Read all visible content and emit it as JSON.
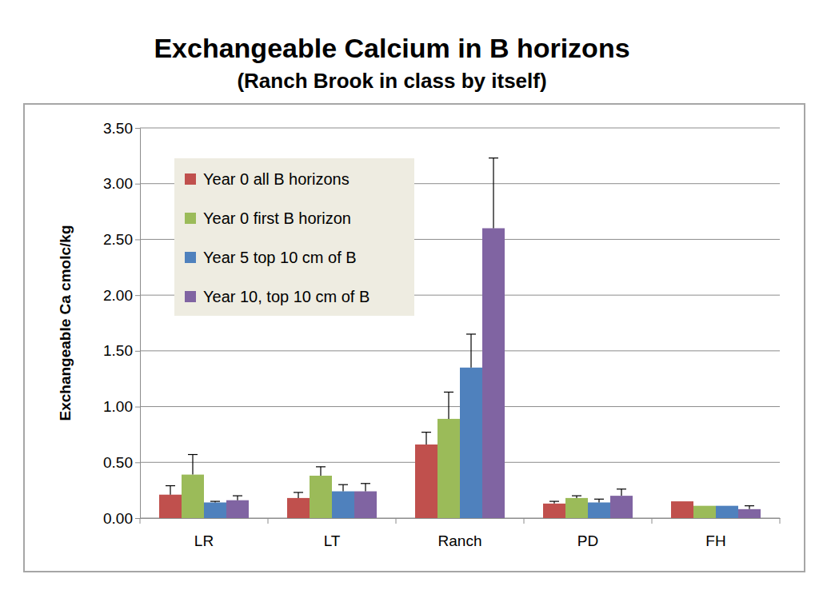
{
  "chart_data": {
    "type": "bar",
    "title": "Exchangeable Calcium in B horizons",
    "subtitle": "(Ranch Brook in class by itself)",
    "y_label": "Exchangeable Ca cmolc/kg",
    "categories": [
      "LR",
      "LT",
      "Ranch",
      "PD",
      "FH"
    ],
    "series": [
      {
        "name": "Year 0 all B horizons",
        "color": "#c0504d",
        "values": [
          0.21,
          0.18,
          0.66,
          0.13,
          0.15
        ],
        "errors": [
          0.08,
          0.05,
          0.11,
          0.02,
          null
        ]
      },
      {
        "name": "Year 0 first B horizon",
        "color": "#9bbb59",
        "values": [
          0.39,
          0.38,
          0.89,
          0.18,
          0.11
        ],
        "errors": [
          0.18,
          0.08,
          0.24,
          0.02,
          null
        ]
      },
      {
        "name": "Year 5 top 10 cm of B",
        "color": "#4f81bd",
        "values": [
          0.14,
          0.24,
          1.35,
          0.14,
          0.11
        ],
        "errors": [
          0.01,
          0.06,
          0.3,
          0.03,
          null
        ]
      },
      {
        "name": "Year 10, top 10 cm of B",
        "color": "#8064a2",
        "values": [
          0.16,
          0.24,
          2.6,
          0.2,
          0.08
        ],
        "errors": [
          0.04,
          0.07,
          0.63,
          0.06,
          0.03
        ]
      }
    ],
    "ylim": [
      0,
      3.5
    ],
    "yticks": [
      {
        "value": 0,
        "label": "0.00"
      },
      {
        "value": 0.5,
        "label": "0.50"
      },
      {
        "value": 1,
        "label": "1.00"
      },
      {
        "value": 1.5,
        "label": "1.50"
      },
      {
        "value": 2,
        "label": "2.00"
      },
      {
        "value": 2.5,
        "label": "2.50"
      },
      {
        "value": 3,
        "label": "3.00"
      },
      {
        "value": 3.5,
        "label": "3.50"
      }
    ],
    "grid": true,
    "legend": "top-left"
  }
}
